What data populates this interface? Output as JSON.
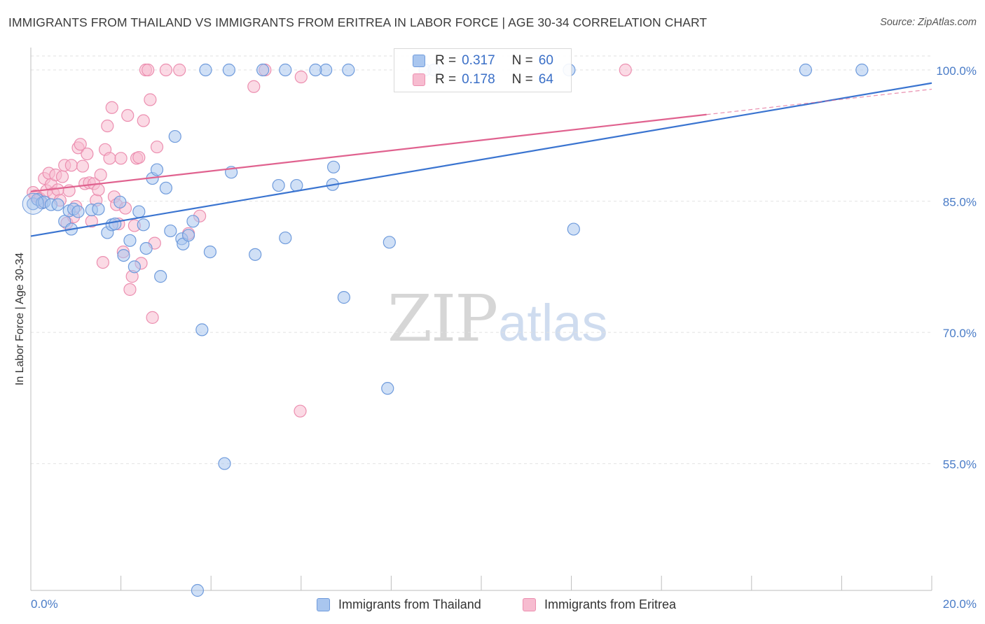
{
  "title": "IMMIGRANTS FROM THAILAND VS IMMIGRANTS FROM ERITREA IN LABOR FORCE | AGE 30-34 CORRELATION CHART",
  "source": "Source: ZipAtlas.com",
  "watermark": {
    "zip": "ZIP",
    "atlas": "atlas"
  },
  "legend": {
    "r_label": "R =",
    "n_label": "N =",
    "thailand": {
      "r": "0.317",
      "n": "60"
    },
    "eritrea": {
      "r": "0.178",
      "n": "64"
    }
  },
  "colors": {
    "thailand_fill": "#a9c6ef",
    "thailand_stroke": "#6f9bdc",
    "thailand_line": "#3a74d0",
    "eritrea_fill": "#f7bcd0",
    "eritrea_stroke": "#ec8fb0",
    "eritrea_line": "#e0628f",
    "tick_text": "#4a7cc7",
    "grid": "#e2e2e2"
  },
  "chart_data": {
    "type": "scatter",
    "title": "IMMIGRANTS FROM THAILAND VS IMMIGRANTS FROM ERITREA IN LABOR FORCE | AGE 30-34 CORRELATION CHART",
    "xlabel": "",
    "ylabel": "In Labor Force | Age 30-34",
    "xlim": [
      0,
      20
    ],
    "ylim": [
      40.5,
      101.6
    ],
    "x_tick_labels": [
      "0.0%",
      "20.0%"
    ],
    "y_ticks": [
      55,
      70,
      85,
      100
    ],
    "y_tick_labels": [
      "55.0%",
      "70.0%",
      "85.0%",
      "100.0%"
    ],
    "grid": true,
    "legend_position": "bottom",
    "series": [
      {
        "name": "Immigrants from Thailand",
        "trend": {
          "x0": 0,
          "y0": 81.0,
          "x1": 20,
          "y1": 98.5
        },
        "points": [
          [
            0.05,
            84.7
          ],
          [
            0.15,
            85.2
          ],
          [
            0.25,
            84.8
          ],
          [
            0.3,
            84.9
          ],
          [
            0.45,
            84.6
          ],
          [
            0.6,
            84.6
          ],
          [
            0.75,
            82.7
          ],
          [
            0.85,
            83.9
          ],
          [
            0.95,
            84.1
          ],
          [
            0.9,
            81.8
          ],
          [
            1.35,
            84.0
          ],
          [
            1.5,
            84.1
          ],
          [
            1.7,
            81.4
          ],
          [
            1.8,
            82.3
          ],
          [
            1.87,
            82.4
          ],
          [
            1.98,
            84.9
          ],
          [
            2.06,
            78.8
          ],
          [
            2.2,
            80.5
          ],
          [
            2.3,
            77.5
          ],
          [
            2.4,
            83.8
          ],
          [
            2.5,
            82.3
          ],
          [
            2.56,
            79.6
          ],
          [
            2.7,
            87.6
          ],
          [
            2.8,
            88.6
          ],
          [
            2.88,
            76.4
          ],
          [
            3.0,
            86.5
          ],
          [
            3.1,
            81.6
          ],
          [
            3.2,
            92.4
          ],
          [
            3.35,
            80.7
          ],
          [
            3.38,
            80.1
          ],
          [
            3.5,
            81.1
          ],
          [
            3.6,
            82.7
          ],
          [
            3.8,
            70.3
          ],
          [
            3.98,
            79.2
          ],
          [
            4.3,
            55.0
          ],
          [
            4.45,
            88.3
          ],
          [
            4.98,
            78.9
          ],
          [
            5.5,
            86.8
          ],
          [
            5.65,
            80.8
          ],
          [
            5.9,
            86.8
          ],
          [
            6.55,
            100.0
          ],
          [
            6.7,
            86.9
          ],
          [
            6.72,
            88.9
          ],
          [
            6.95,
            74.0
          ],
          [
            7.05,
            100.0
          ],
          [
            7.92,
            63.6
          ],
          [
            7.96,
            80.3
          ],
          [
            8.75,
            100.0
          ],
          [
            8.95,
            100.0
          ],
          [
            11.95,
            100.0
          ],
          [
            12.05,
            81.8
          ],
          [
            17.2,
            100.0
          ],
          [
            18.45,
            100.0
          ],
          [
            3.88,
            100.0
          ],
          [
            4.4,
            100.0
          ],
          [
            5.15,
            100.0
          ],
          [
            5.65,
            100.0
          ],
          [
            6.32,
            100.0
          ],
          [
            3.7,
            40.5
          ],
          [
            1.05,
            83.8
          ]
        ]
      },
      {
        "name": "Immigrants from Eritrea",
        "trend": {
          "x0": 0,
          "y0": 86.1,
          "x1": 15.0,
          "y1": 94.9
        },
        "trend_dashed": {
          "x0": 15.0,
          "y0": 94.9,
          "x1": 20,
          "y1": 97.8
        },
        "points": [
          [
            0.05,
            86.0
          ],
          [
            0.1,
            85.6
          ],
          [
            0.2,
            85.3
          ],
          [
            0.25,
            84.8
          ],
          [
            0.3,
            87.6
          ],
          [
            0.35,
            86.2
          ],
          [
            0.4,
            88.2
          ],
          [
            0.45,
            86.9
          ],
          [
            0.5,
            85.9
          ],
          [
            0.55,
            88.0
          ],
          [
            0.6,
            86.3
          ],
          [
            0.65,
            85.1
          ],
          [
            0.7,
            87.8
          ],
          [
            0.75,
            89.1
          ],
          [
            0.8,
            82.5
          ],
          [
            0.85,
            86.2
          ],
          [
            0.9,
            89.1
          ],
          [
            0.95,
            83.2
          ],
          [
            1.0,
            84.4
          ],
          [
            1.05,
            91.1
          ],
          [
            1.1,
            91.5
          ],
          [
            1.15,
            89.0
          ],
          [
            1.2,
            87.0
          ],
          [
            1.25,
            90.4
          ],
          [
            1.3,
            87.1
          ],
          [
            1.35,
            82.7
          ],
          [
            1.4,
            87.0
          ],
          [
            1.45,
            85.1
          ],
          [
            1.5,
            86.3
          ],
          [
            1.55,
            88.0
          ],
          [
            1.6,
            78.0
          ],
          [
            1.65,
            90.9
          ],
          [
            1.7,
            93.6
          ],
          [
            1.75,
            89.9
          ],
          [
            1.8,
            95.7
          ],
          [
            1.85,
            85.5
          ],
          [
            1.9,
            84.6
          ],
          [
            1.95,
            82.4
          ],
          [
            2.0,
            89.9
          ],
          [
            2.05,
            79.2
          ],
          [
            2.1,
            84.2
          ],
          [
            2.15,
            94.8
          ],
          [
            2.2,
            74.9
          ],
          [
            2.25,
            76.4
          ],
          [
            2.3,
            82.2
          ],
          [
            2.35,
            89.9
          ],
          [
            2.4,
            90.0
          ],
          [
            2.45,
            77.9
          ],
          [
            2.5,
            94.2
          ],
          [
            2.55,
            100.0
          ],
          [
            2.6,
            100.0
          ],
          [
            2.65,
            96.6
          ],
          [
            2.7,
            71.7
          ],
          [
            2.75,
            80.2
          ],
          [
            2.8,
            91.2
          ],
          [
            3.0,
            100.0
          ],
          [
            3.3,
            100.0
          ],
          [
            3.5,
            81.3
          ],
          [
            3.75,
            83.3
          ],
          [
            6.0,
            99.2
          ],
          [
            5.2,
            100.0
          ],
          [
            4.95,
            98.1
          ],
          [
            5.98,
            61.0
          ],
          [
            13.2,
            100.0
          ]
        ]
      }
    ]
  }
}
